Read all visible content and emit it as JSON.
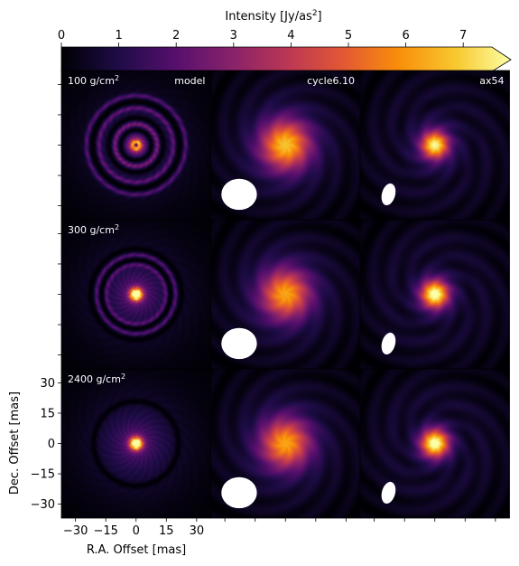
{
  "chart_data": {
    "type": "heatmap",
    "colorbar": {
      "label_main": "Intensity [Jy/as",
      "label_sup": "2",
      "label_end": "]",
      "ticks": [
        0,
        1,
        2,
        3,
        4,
        5,
        6,
        7
      ],
      "range": [
        0,
        7.5
      ],
      "extend": "max",
      "colormap": "inferno"
    },
    "columns": [
      "model",
      "cycle6.10",
      "ax54"
    ],
    "rows": [
      {
        "label": "100 g/cm",
        "sup": "2"
      },
      {
        "label": "300 g/cm",
        "sup": "2"
      },
      {
        "label": "2400 g/cm",
        "sup": "2"
      }
    ],
    "xlabel": "R.A. Offset [mas]",
    "ylabel": "Dec. Offset [mas]",
    "xticks": [
      -30,
      -15,
      0,
      15,
      30
    ],
    "yticks": [
      30,
      15,
      0,
      -15,
      -30
    ],
    "axis_range": [
      -37,
      37
    ],
    "panels": [
      {
        "row": 0,
        "col": 0,
        "kind": "model",
        "peak": 7.5,
        "core_fwhm_mas": 4,
        "gaps_mas": [
          7.5,
          13.5,
          21.5
        ],
        "rings_mas": [
          10.5,
          18.5,
          24.5
        ],
        "central_dot": true
      },
      {
        "row": 0,
        "col": 1,
        "kind": "observed",
        "peak": 5.5,
        "fwhm_mas": 20,
        "beam_mas": [
          16,
          14,
          0
        ]
      },
      {
        "row": 0,
        "col": 2,
        "kind": "observed",
        "peak": 6.5,
        "fwhm_mas": 11,
        "beam_mas": [
          6,
          10,
          15
        ],
        "ring_mas": 20
      },
      {
        "row": 1,
        "col": 0,
        "kind": "model",
        "peak": 7.5,
        "core_fwhm_mas": 5,
        "gaps_mas": [
          17,
          22.5
        ],
        "rings_mas": [
          15,
          19.5
        ],
        "central_dot": false
      },
      {
        "row": 1,
        "col": 1,
        "kind": "observed",
        "peak": 5.0,
        "fwhm_mas": 20,
        "beam_mas": [
          16,
          14,
          0
        ]
      },
      {
        "row": 1,
        "col": 2,
        "kind": "observed",
        "peak": 7.0,
        "fwhm_mas": 11,
        "beam_mas": [
          6,
          10,
          15
        ],
        "ring_mas": 18
      },
      {
        "row": 2,
        "col": 0,
        "kind": "model",
        "peak": 7.5,
        "core_fwhm_mas": 5,
        "gaps_mas": [
          21
        ],
        "rings_mas": [],
        "central_dot": false
      },
      {
        "row": 2,
        "col": 1,
        "kind": "observed",
        "peak": 5.0,
        "fwhm_mas": 20,
        "beam_mas": [
          16,
          14,
          0
        ]
      },
      {
        "row": 2,
        "col": 2,
        "kind": "observed",
        "peak": 7.0,
        "fwhm_mas": 11,
        "beam_mas": [
          6,
          10,
          15
        ],
        "ring_mas": 17
      }
    ]
  }
}
